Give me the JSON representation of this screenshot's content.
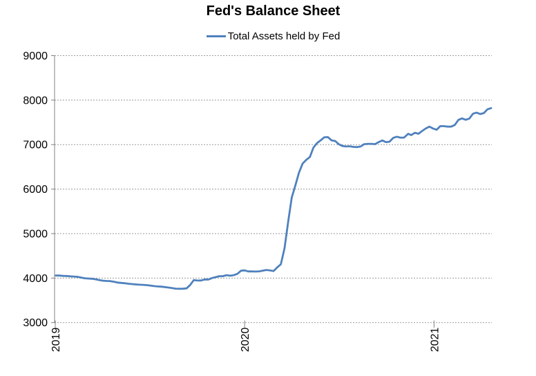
{
  "chart": {
    "title": "Fed's Balance Sheet",
    "legend": "Total Assets held by Fed"
  },
  "colors": {
    "line": "#4F81BD",
    "grid": "#999999",
    "axis": "#808080",
    "text": "#000000",
    "background": "#ffffff"
  },
  "chart_data": {
    "type": "line",
    "title": "Fed's Balance Sheet",
    "xlabel": "",
    "ylabel": "",
    "grid": "horizontal-dotted",
    "legend_position": "top-center",
    "ylim": [
      3000,
      9000
    ],
    "xlim_years": [
      2019.0,
      2021.305
    ],
    "yticks": [
      {
        "y": 3000,
        "label": "3000"
      },
      {
        "y": 4000,
        "label": "4000"
      },
      {
        "y": 5000,
        "label": "5000"
      },
      {
        "y": 6000,
        "label": "6000"
      },
      {
        "y": 7000,
        "label": "7000"
      },
      {
        "y": 8000,
        "label": "8000"
      },
      {
        "y": 9000,
        "label": "9000"
      }
    ],
    "xticks": [
      {
        "x": 2019,
        "label": "2019"
      },
      {
        "x": 2020,
        "label": "2020"
      },
      {
        "x": 2021,
        "label": "2021"
      }
    ],
    "series": [
      {
        "name": "Total Assets held by Fed",
        "units": "billions of USD, weekly",
        "color": "#4F81BD",
        "points": [
          [
            "2019-01-02",
            4058
          ],
          [
            "2019-01-09",
            4056
          ],
          [
            "2019-01-16",
            4048
          ],
          [
            "2019-01-23",
            4047
          ],
          [
            "2019-01-30",
            4040
          ],
          [
            "2019-02-06",
            4035
          ],
          [
            "2019-02-13",
            4029
          ],
          [
            "2019-02-20",
            4012
          ],
          [
            "2019-02-27",
            3996
          ],
          [
            "2019-03-06",
            3990
          ],
          [
            "2019-03-13",
            3985
          ],
          [
            "2019-03-20",
            3972
          ],
          [
            "2019-03-27",
            3956
          ],
          [
            "2019-04-03",
            3942
          ],
          [
            "2019-04-10",
            3936
          ],
          [
            "2019-04-17",
            3932
          ],
          [
            "2019-04-24",
            3918
          ],
          [
            "2019-05-01",
            3900
          ],
          [
            "2019-05-08",
            3892
          ],
          [
            "2019-05-15",
            3884
          ],
          [
            "2019-05-22",
            3873
          ],
          [
            "2019-05-29",
            3866
          ],
          [
            "2019-06-05",
            3858
          ],
          [
            "2019-06-12",
            3852
          ],
          [
            "2019-06-19",
            3848
          ],
          [
            "2019-06-26",
            3842
          ],
          [
            "2019-07-03",
            3833
          ],
          [
            "2019-07-10",
            3820
          ],
          [
            "2019-07-17",
            3812
          ],
          [
            "2019-07-24",
            3808
          ],
          [
            "2019-07-31",
            3798
          ],
          [
            "2019-08-07",
            3788
          ],
          [
            "2019-08-14",
            3775
          ],
          [
            "2019-08-21",
            3763
          ],
          [
            "2019-08-28",
            3760
          ],
          [
            "2019-09-04",
            3761
          ],
          [
            "2019-09-11",
            3769
          ],
          [
            "2019-09-18",
            3845
          ],
          [
            "2019-09-25",
            3956
          ],
          [
            "2019-10-02",
            3945
          ],
          [
            "2019-10-09",
            3946
          ],
          [
            "2019-10-16",
            3970
          ],
          [
            "2019-10-23",
            3966
          ],
          [
            "2019-10-30",
            4000
          ],
          [
            "2019-11-06",
            4021
          ],
          [
            "2019-11-13",
            4043
          ],
          [
            "2019-11-20",
            4042
          ],
          [
            "2019-11-27",
            4066
          ],
          [
            "2019-12-04",
            4054
          ],
          [
            "2019-12-11",
            4066
          ],
          [
            "2019-12-18",
            4095
          ],
          [
            "2019-12-25",
            4165
          ],
          [
            "2020-01-01",
            4173
          ],
          [
            "2020-01-08",
            4149
          ],
          [
            "2020-01-15",
            4149
          ],
          [
            "2020-01-22",
            4146
          ],
          [
            "2020-01-29",
            4151
          ],
          [
            "2020-02-05",
            4166
          ],
          [
            "2020-02-12",
            4182
          ],
          [
            "2020-02-19",
            4171
          ],
          [
            "2020-02-26",
            4159
          ],
          [
            "2020-03-04",
            4241
          ],
          [
            "2020-03-11",
            4312
          ],
          [
            "2020-03-18",
            4668
          ],
          [
            "2020-03-25",
            5254
          ],
          [
            "2020-04-01",
            5812
          ],
          [
            "2020-04-08",
            6083
          ],
          [
            "2020-04-15",
            6368
          ],
          [
            "2020-04-22",
            6573
          ],
          [
            "2020-04-29",
            6656
          ],
          [
            "2020-05-06",
            6721
          ],
          [
            "2020-05-13",
            6934
          ],
          [
            "2020-05-20",
            7037
          ],
          [
            "2020-05-27",
            7097
          ],
          [
            "2020-06-03",
            7165
          ],
          [
            "2020-06-10",
            7169
          ],
          [
            "2020-06-17",
            7095
          ],
          [
            "2020-06-24",
            7082
          ],
          [
            "2020-07-01",
            7009
          ],
          [
            "2020-07-08",
            6969
          ],
          [
            "2020-07-15",
            6958
          ],
          [
            "2020-07-22",
            6964
          ],
          [
            "2020-07-29",
            6949
          ],
          [
            "2020-08-05",
            6945
          ],
          [
            "2020-08-12",
            6957
          ],
          [
            "2020-08-19",
            7010
          ],
          [
            "2020-08-26",
            7017
          ],
          [
            "2020-09-02",
            7017
          ],
          [
            "2020-09-09",
            7011
          ],
          [
            "2020-09-16",
            7056
          ],
          [
            "2020-09-23",
            7093
          ],
          [
            "2020-09-30",
            7056
          ],
          [
            "2020-10-07",
            7066
          ],
          [
            "2020-10-14",
            7150
          ],
          [
            "2020-10-21",
            7177
          ],
          [
            "2020-10-28",
            7157
          ],
          [
            "2020-11-04",
            7157
          ],
          [
            "2020-11-12",
            7243
          ],
          [
            "2020-11-18",
            7215
          ],
          [
            "2020-11-25",
            7266
          ],
          [
            "2020-12-02",
            7244
          ],
          [
            "2020-12-09",
            7306
          ],
          [
            "2020-12-16",
            7363
          ],
          [
            "2020-12-23",
            7404
          ],
          [
            "2020-12-30",
            7363
          ],
          [
            "2021-01-06",
            7335
          ],
          [
            "2021-01-13",
            7415
          ],
          [
            "2021-01-20",
            7415
          ],
          [
            "2021-01-27",
            7404
          ],
          [
            "2021-02-03",
            7405
          ],
          [
            "2021-02-10",
            7442
          ],
          [
            "2021-02-17",
            7557
          ],
          [
            "2021-02-24",
            7590
          ],
          [
            "2021-03-03",
            7558
          ],
          [
            "2021-03-10",
            7584
          ],
          [
            "2021-03-17",
            7693
          ],
          [
            "2021-03-24",
            7720
          ],
          [
            "2021-03-31",
            7687
          ],
          [
            "2021-04-07",
            7709
          ],
          [
            "2021-04-14",
            7793
          ],
          [
            "2021-04-21",
            7821
          ]
        ]
      }
    ]
  }
}
